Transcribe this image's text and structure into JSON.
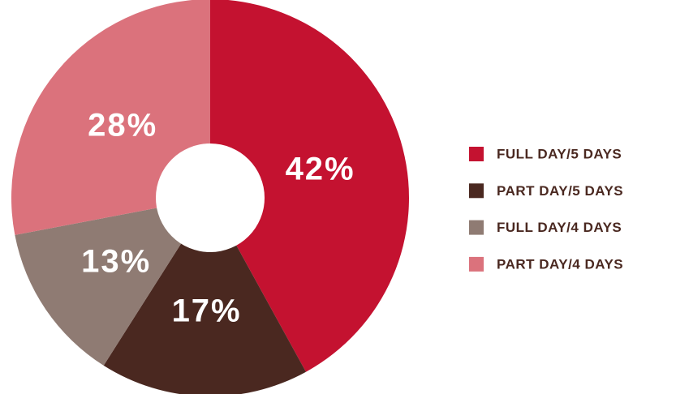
{
  "chart_data": {
    "type": "donut",
    "categories": [
      "FULL DAY/5 DAYS",
      "PART DAY/5 DAYS",
      "FULL DAY/4 DAYS",
      "PART DAY/4 DAYS"
    ],
    "values": [
      42,
      17,
      13,
      28
    ],
    "value_labels": [
      "42%",
      "17%",
      "13%",
      "28%"
    ],
    "colors": [
      "#c41230",
      "#4a2820",
      "#8f7b73",
      "#db727c"
    ],
    "legend": "right"
  }
}
